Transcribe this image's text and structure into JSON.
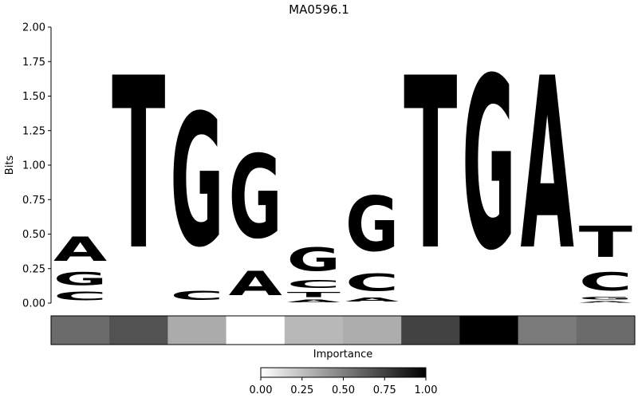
{
  "chart_data": {
    "type": "sequence-logo",
    "title": "MA0596.1",
    "ylabel": "Bits",
    "ylim": [
      0,
      2.0
    ],
    "yticks": [
      "0.00",
      "0.25",
      "0.50",
      "0.75",
      "1.00",
      "1.25",
      "1.50",
      "1.75",
      "2.00"
    ],
    "grid": false,
    "letter_colors": {
      "A": "#4aa347",
      "C": "#4a4af0",
      "G": "#ffbe4a",
      "T": "#ff4c4c"
    },
    "positions": [
      {
        "letters": [
          {
            "base": "C",
            "height": 0.1
          },
          {
            "base": "G",
            "height": 0.15
          },
          {
            "base": "A",
            "height": 0.28
          }
        ],
        "importance": 0.58
      },
      {
        "letters": [
          {
            "base": "T",
            "height": 2.0
          }
        ],
        "importance": 0.68
      },
      {
        "letters": [
          {
            "base": "C",
            "height": 0.11
          },
          {
            "base": "G",
            "height": 1.54
          }
        ],
        "importance": 0.33
      },
      {
        "letters": [
          {
            "base": "A",
            "height": 0.28
          },
          {
            "base": "G",
            "height": 0.97
          }
        ],
        "importance": 0.0
      },
      {
        "letters": [
          {
            "base": "A",
            "height": 0.03
          },
          {
            "base": "T",
            "height": 0.06
          },
          {
            "base": "C",
            "height": 0.09
          },
          {
            "base": "G",
            "height": 0.27
          }
        ],
        "importance": 0.28
      },
      {
        "letters": [
          {
            "base": "A",
            "height": 0.05
          },
          {
            "base": "C",
            "height": 0.2
          },
          {
            "base": "G",
            "height": 0.64
          }
        ],
        "importance": 0.32
      },
      {
        "letters": [
          {
            "base": "T",
            "height": 2.0
          }
        ],
        "importance": 0.74
      },
      {
        "letters": [
          {
            "base": "G",
            "height": 2.0
          }
        ],
        "importance": 1.0
      },
      {
        "letters": [
          {
            "base": "A",
            "height": 2.0
          }
        ],
        "importance": 0.52
      },
      {
        "letters": [
          {
            "base": "A",
            "height": 0.02
          },
          {
            "base": "G",
            "height": 0.03
          },
          {
            "base": "C",
            "height": 0.21
          },
          {
            "base": "T",
            "height": 0.36
          }
        ],
        "importance": 0.58
      }
    ],
    "importance_label": "Importance",
    "colorbar": {
      "range": [
        0,
        1
      ],
      "ticks": [
        "0.00",
        "0.25",
        "0.50",
        "0.75",
        "1.00"
      ]
    }
  }
}
